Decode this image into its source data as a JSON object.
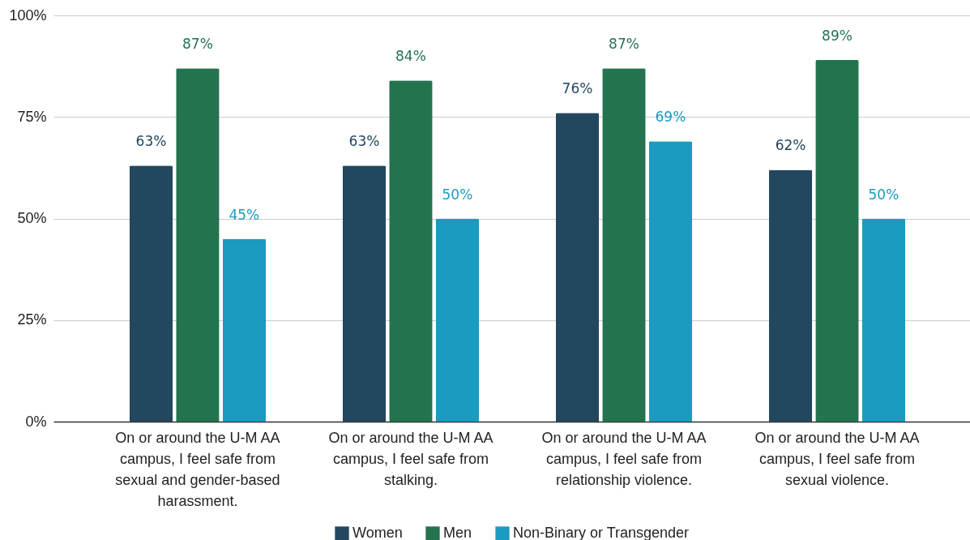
{
  "chart_data": {
    "type": "bar",
    "categories": [
      "On or around the U-M AA campus, I feel safe from sexual and gender-based harassment.",
      "On or around the U-M AA campus, I feel safe from stalking.",
      "On or around the U-M AA campus, I feel safe from relationship violence.",
      "On or around the U-M AA campus, I feel safe from sexual violence."
    ],
    "series": [
      {
        "name": "Women",
        "color": "#23475e",
        "values": [
          63,
          63,
          76,
          62
        ],
        "value_labels": [
          "63%",
          "63%",
          "76%",
          "62%"
        ]
      },
      {
        "name": "Men",
        "color": "#23734f",
        "values": [
          87,
          84,
          87,
          89
        ],
        "value_labels": [
          "87%",
          "84%",
          "87%",
          "89%"
        ]
      },
      {
        "name": "Non-Binary or Transgender",
        "color": "#1a9bbf",
        "values": [
          45,
          50,
          69,
          50
        ],
        "value_labels": [
          "45%",
          "50%",
          "69%",
          "50%"
        ]
      }
    ],
    "ylim": [
      0,
      100
    ],
    "yticks": [
      {
        "value": 0,
        "label": "0%"
      },
      {
        "value": 25,
        "label": "25%"
      },
      {
        "value": 50,
        "label": "50%"
      },
      {
        "value": 75,
        "label": "75%"
      },
      {
        "value": 100,
        "label": "100%"
      }
    ],
    "grid": "y",
    "legend": "bottom"
  }
}
